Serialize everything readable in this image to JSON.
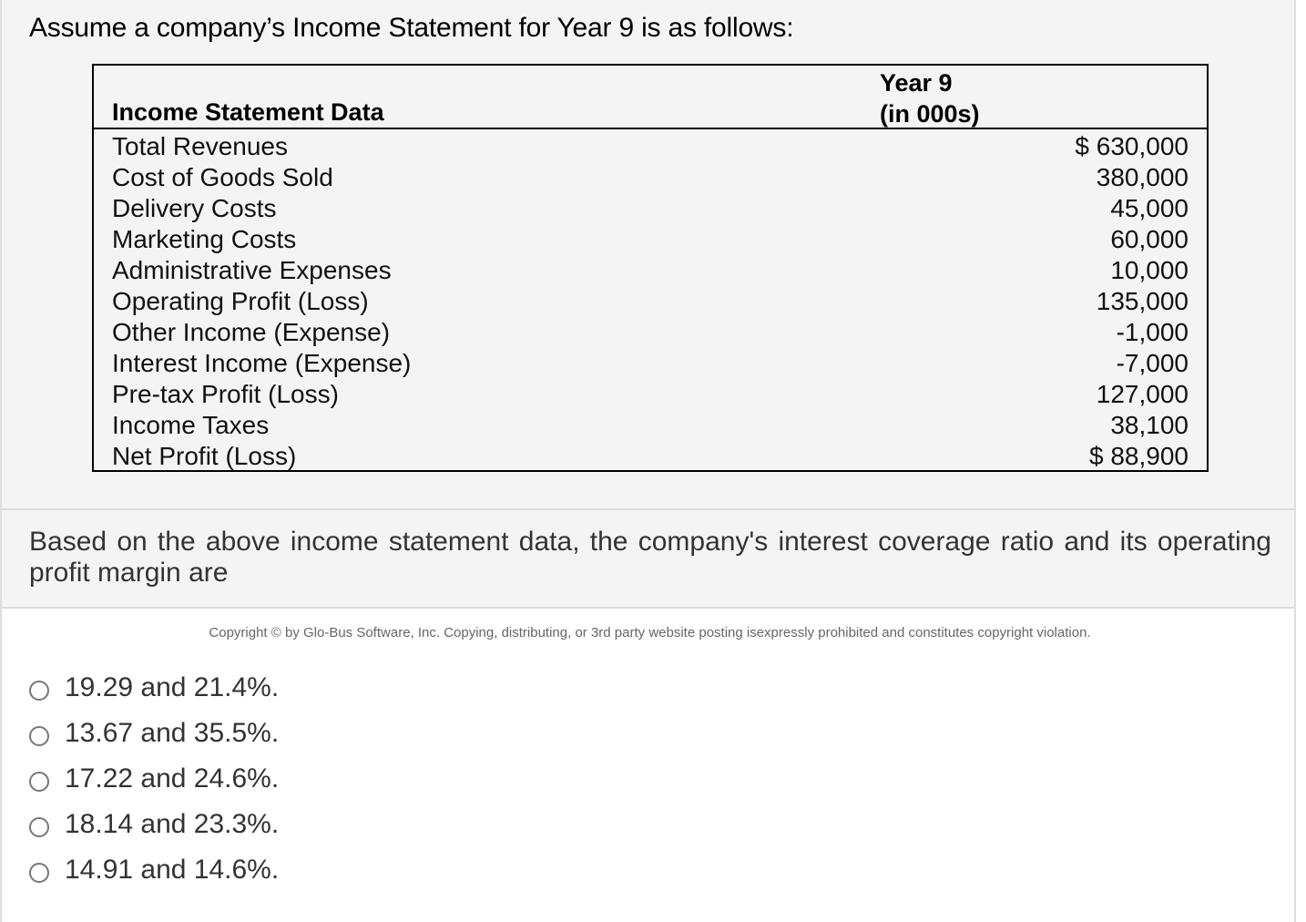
{
  "intro": "Assume a company’s Income Statement for Year 9 is as follows:",
  "table": {
    "header_label": "Income Statement Data",
    "header_year_line1": "Year 9",
    "header_year_line2": "(in 000s)",
    "rows": [
      {
        "label": "Total Revenues",
        "value": "$ 630,000"
      },
      {
        "label": "Cost of Goods Sold",
        "value": "380,000"
      },
      {
        "label": "Delivery Costs",
        "value": "45,000"
      },
      {
        "label": "Marketing Costs",
        "value": "60,000"
      },
      {
        "label": "Administrative Expenses",
        "value": "10,000"
      },
      {
        "label": "Operating Profit (Loss)",
        "value": "135,000"
      },
      {
        "label": "Other Income (Expense)",
        "value": "-1,000"
      },
      {
        "label": "Interest Income (Expense)",
        "value": "-7,000"
      },
      {
        "label": "Pre-tax Profit (Loss)",
        "value": "127,000"
      },
      {
        "label": "Income Taxes",
        "value": "38,100"
      },
      {
        "label": "Net Profit (Loss)",
        "value": "$ 88,900"
      }
    ]
  },
  "question": "Based on the above income statement data, the company's interest coverage ratio and its operating profit margin are",
  "copyright": "Copyright © by Glo-Bus Software, Inc. Copying, distributing, or 3rd party website posting isexpressly prohibited and constitutes copyright violation.",
  "options": [
    {
      "label": "19.29 and 21.4%.",
      "selected": false
    },
    {
      "label": "13.67 and 35.5%.",
      "selected": false
    },
    {
      "label": "17.22 and 24.6%.",
      "selected": false
    },
    {
      "label": "18.14 and 23.3%.",
      "selected": false
    },
    {
      "label": "14.91 and 14.6%.",
      "selected": false
    }
  ]
}
